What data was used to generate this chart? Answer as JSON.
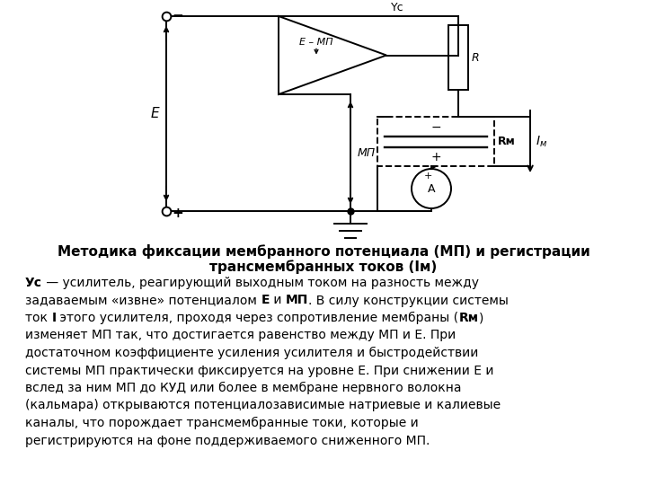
{
  "bg_color": "#ffffff",
  "line_color": "#000000",
  "title_line1": "Методика фиксации мембранного потенциала (МП) и регистрации",
  "title_line2": "трансмембранных токов (Iм)",
  "body_lines": [
    [
      [
        "Ус",
        true
      ],
      [
        " — усилитель, реагирующий выходным током на разность между",
        false
      ]
    ],
    [
      [
        "задаваемым «извне» потенциалом ",
        false
      ],
      [
        "Е",
        true
      ],
      [
        " и ",
        false
      ],
      [
        "МП",
        true
      ],
      [
        ". В силу конструкции системы",
        false
      ]
    ],
    [
      [
        "ток ",
        false
      ],
      [
        "I",
        true
      ],
      [
        " этого усилителя, проходя через сопротивление мембраны (",
        false
      ],
      [
        "Rм",
        true
      ],
      [
        ")",
        false
      ]
    ],
    [
      [
        "изменяет МП так, что достигается равенство между МП и Е. При",
        false
      ]
    ],
    [
      [
        "достаточном коэффициенте усиления усилителя и быстродействии",
        false
      ]
    ],
    [
      [
        "системы МП практически фиксируется на уровне Е. При снижении Е и",
        false
      ]
    ],
    [
      [
        "вслед за ним МП до КУД или более в мембране нервного волокна",
        false
      ]
    ],
    [
      [
        "(кальмара) открываются потенциалозависимые натриевые и калиевые",
        false
      ]
    ],
    [
      [
        "каналы, что порождает трансмембранные токи, которые и",
        false
      ]
    ],
    [
      [
        "регистрируются на фоне поддерживаемого сниженного МП.",
        false
      ]
    ]
  ],
  "fontsize_body": 10,
  "fontsize_title": 11
}
